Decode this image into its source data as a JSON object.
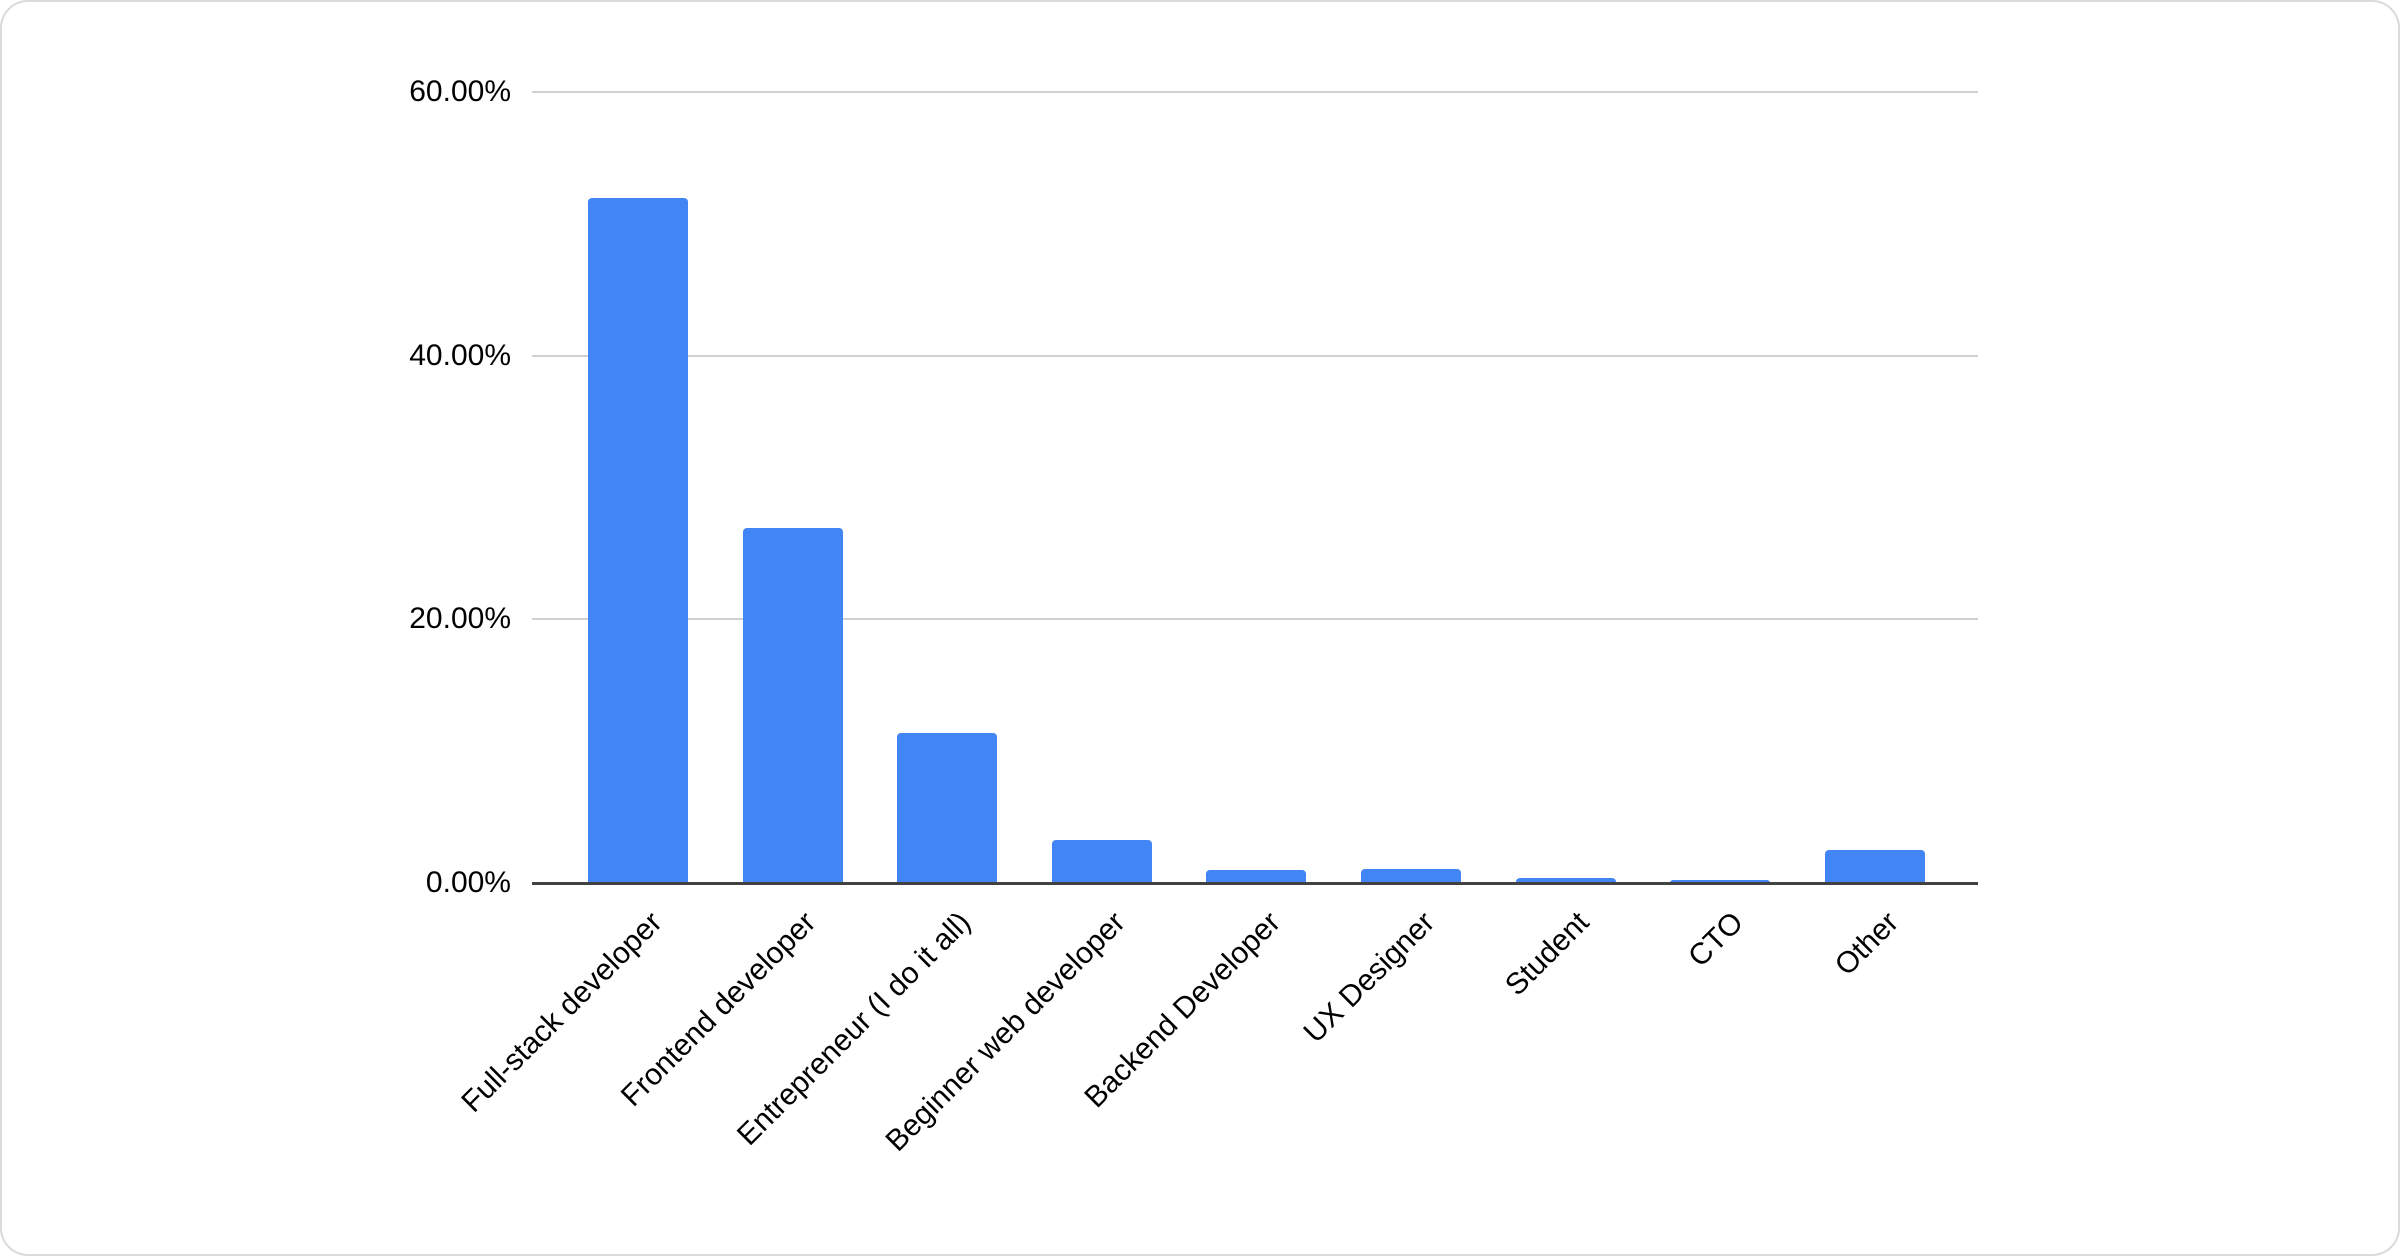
{
  "chart_data": {
    "type": "bar",
    "title": "",
    "xlabel": "",
    "ylabel": "",
    "categories": [
      "Full-stack developer",
      "Frontend developer",
      "Entrepreneur (I do it all)",
      "Beginner web developer",
      "Backend Developer",
      "UX Designer",
      "Student",
      "CTO",
      "Other"
    ],
    "values": [
      52.0,
      26.9,
      11.4,
      3.3,
      1.0,
      1.1,
      0.4,
      0.2,
      2.5
    ],
    "value_unit": "percent",
    "ylim": [
      0,
      60
    ],
    "y_ticks": [
      {
        "value": 0,
        "label": "0.00%"
      },
      {
        "value": 20,
        "label": "20.00%"
      },
      {
        "value": 40,
        "label": "40.00%"
      },
      {
        "value": 60,
        "label": "60.00%"
      }
    ],
    "grid": true,
    "legend_position": "none",
    "x_label_rotation_deg": -45,
    "colors": {
      "bar": "#4285f4",
      "axis_line": "#424242",
      "gridline": "#cdd1d3",
      "label_text": "#000000",
      "card_border": "#d7dbde",
      "background": "#ffffff"
    }
  }
}
